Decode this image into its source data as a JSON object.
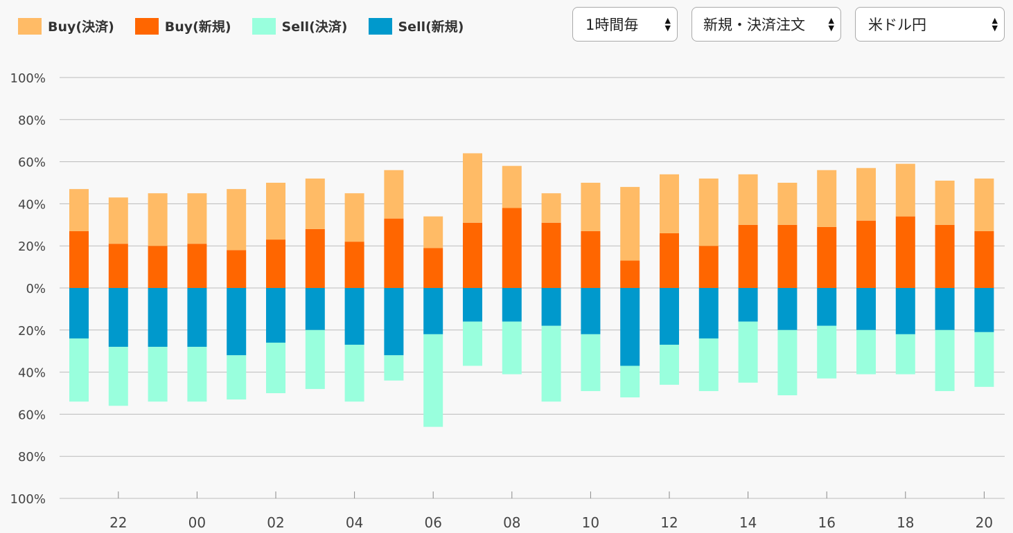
{
  "legend": [
    {
      "label": "Buy(決済)",
      "color": "#ffbb66"
    },
    {
      "label": "Buy(新規)",
      "color": "#ff6600"
    },
    {
      "label": "Sell(決済)",
      "color": "#99ffdd"
    },
    {
      "label": "Sell(新規)",
      "color": "#0099cc"
    }
  ],
  "controls": {
    "interval": "1時間毎",
    "order_type": "新規・決済注文",
    "currency_pair": "米ドル円"
  },
  "chart_data": {
    "type": "bar",
    "stacked": true,
    "diverging": true,
    "y_ticks": [
      "100%",
      "80%",
      "60%",
      "40%",
      "20%",
      "0%",
      "20%",
      "40%",
      "60%",
      "80%",
      "100%"
    ],
    "y_range": [
      -100,
      100
    ],
    "x_tick_labels": [
      "22",
      "00",
      "02",
      "04",
      "06",
      "08",
      "10",
      "12",
      "14",
      "16",
      "18",
      "20"
    ],
    "x_tick_bar_index": [
      1,
      3,
      5,
      7,
      9,
      11,
      13,
      15,
      17,
      19,
      21,
      23
    ],
    "grid": true,
    "legend_position": "top-left",
    "series": [
      {
        "name": "Buy(新規)",
        "color": "#ff6600",
        "side": "positive",
        "values": [
          27,
          21,
          20,
          21,
          18,
          23,
          28,
          22,
          33,
          19,
          31,
          38,
          31,
          27,
          13,
          26,
          20,
          30,
          30,
          29,
          32,
          34,
          30,
          27
        ]
      },
      {
        "name": "Buy(決済)",
        "color": "#ffbb66",
        "side": "positive",
        "values": [
          20,
          22,
          25,
          24,
          29,
          27,
          24,
          23,
          23,
          15,
          33,
          20,
          14,
          23,
          35,
          28,
          32,
          24,
          20,
          27,
          25,
          25,
          21,
          25
        ]
      },
      {
        "name": "Sell(新規)",
        "color": "#0099cc",
        "side": "negative",
        "values": [
          24,
          28,
          28,
          28,
          32,
          26,
          20,
          27,
          32,
          22,
          16,
          16,
          18,
          22,
          37,
          27,
          24,
          16,
          20,
          18,
          20,
          22,
          20,
          21
        ]
      },
      {
        "name": "Sell(決済)",
        "color": "#99ffdd",
        "side": "negative",
        "values": [
          30,
          28,
          26,
          26,
          21,
          24,
          28,
          27,
          12,
          44,
          21,
          25,
          36,
          27,
          15,
          19,
          25,
          29,
          31,
          25,
          21,
          19,
          29,
          26
        ]
      }
    ]
  }
}
